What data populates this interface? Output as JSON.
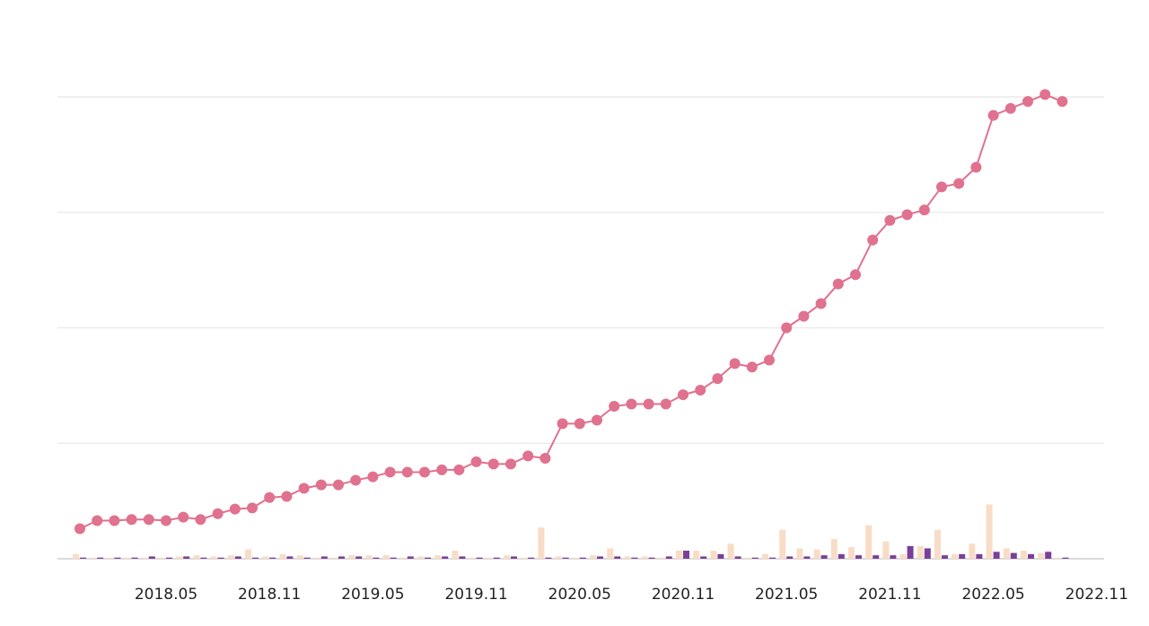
{
  "chart_data": {
    "type": "line",
    "categories": [
      null,
      null,
      null,
      null,
      null,
      "2018.05",
      null,
      null,
      null,
      null,
      null,
      "2018.11",
      null,
      null,
      null,
      null,
      null,
      "2019.05",
      null,
      null,
      null,
      null,
      null,
      "2019.11",
      null,
      null,
      null,
      null,
      null,
      "2020.05",
      null,
      null,
      null,
      null,
      null,
      "2020.11",
      null,
      null,
      null,
      null,
      null,
      "2021.05",
      null,
      null,
      null,
      null,
      null,
      "2021.11",
      null,
      null,
      null,
      null,
      null,
      "2022.05",
      null,
      null,
      null,
      null,
      null,
      "2022.11"
    ],
    "series": [
      {
        "color": "#e0718f",
        "values": [
          26,
          33,
          33,
          34,
          34,
          33,
          36,
          34,
          39,
          43,
          44,
          53,
          54,
          61,
          64,
          64,
          68,
          71,
          75,
          75,
          75,
          77,
          77,
          84,
          82,
          82,
          89,
          87,
          117,
          117,
          120,
          132,
          134,
          134,
          134,
          142,
          146,
          156,
          169,
          166,
          172,
          200,
          210,
          221,
          238,
          246,
          276,
          293,
          298,
          302,
          322,
          325,
          339,
          384,
          390,
          396,
          402,
          396,
          null,
          null
        ]
      },
      {
        "type": "bar",
        "color": "#f9dcc6",
        "values": [
          4,
          1,
          1,
          1,
          1,
          1,
          2,
          3,
          2,
          3,
          8,
          2,
          4,
          3,
          1,
          1,
          3,
          3,
          3,
          1,
          2,
          3,
          7,
          1,
          1,
          3,
          1,
          27,
          2,
          1,
          3,
          9,
          2,
          2,
          1,
          7,
          7,
          7,
          13,
          1,
          4,
          25,
          9,
          8,
          17,
          10,
          29,
          15,
          4,
          11,
          25,
          4,
          13,
          47,
          9,
          7,
          5,
          1,
          null,
          null
        ]
      },
      {
        "type": "bar",
        "color": "#7b3f98",
        "values": [
          1,
          1,
          1,
          1,
          2,
          1,
          2,
          1,
          1,
          2,
          1,
          1,
          2,
          1,
          2,
          2,
          2,
          1,
          1,
          2,
          1,
          2,
          2,
          1,
          1,
          2,
          1,
          1,
          1,
          1,
          2,
          2,
          1,
          1,
          2,
          7,
          2,
          4,
          2,
          1,
          1,
          2,
          2,
          3,
          4,
          3,
          3,
          3,
          11,
          9,
          3,
          4,
          4,
          6,
          5,
          4,
          6,
          1,
          null,
          null
        ]
      }
    ],
    "ylim": [
      0,
      400
    ],
    "yticks": [
      0,
      100,
      200,
      300,
      400
    ],
    "grid": true
  }
}
